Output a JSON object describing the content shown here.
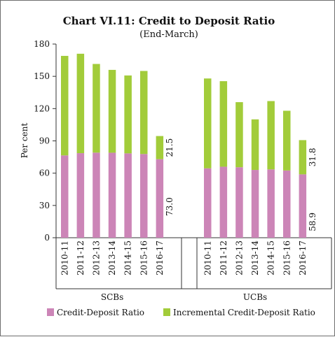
{
  "chart_data": {
    "type": "bar",
    "stacked": true,
    "title": "Chart VI.11: Credit to Deposit Ratio",
    "subtitle": "(End-March)",
    "ylabel": "Per cent",
    "ylim": [
      0,
      180
    ],
    "yticks": [
      0,
      30,
      60,
      90,
      120,
      150,
      180
    ],
    "groups": [
      {
        "name": "SCBs",
        "categories": [
          "2010-11",
          "2011-12",
          "2012-13",
          "2013-14",
          "2014-15",
          "2015-16",
          "2016-17"
        ],
        "base": [
          76.5,
          78.6,
          79.1,
          79.0,
          78.4,
          77.8,
          73.0
        ],
        "incremental": [
          92.5,
          92.4,
          82.4,
          77.0,
          72.4,
          77.2,
          21.5
        ]
      },
      {
        "name": "UCBs",
        "categories": [
          "2010-11",
          "2011-12",
          "2012-13",
          "2013-14",
          "2014-15",
          "2015-16",
          "2016-17"
        ],
        "base": [
          64.5,
          66.0,
          65.5,
          63.0,
          63.5,
          62.5,
          58.9
        ],
        "incremental": [
          83.5,
          79.5,
          60.5,
          47.0,
          63.5,
          55.5,
          31.8
        ]
      }
    ],
    "annotations": [
      {
        "group": 0,
        "category": 6,
        "series": "incremental",
        "text": "21.5"
      },
      {
        "group": 0,
        "category": 6,
        "series": "base",
        "text": "73.0"
      },
      {
        "group": 1,
        "category": 6,
        "series": "incremental",
        "text": "31.8"
      },
      {
        "group": 1,
        "category": 6,
        "series": "base",
        "text": "58.9"
      }
    ],
    "series": [
      {
        "name": "Credit-Deposit Ratio",
        "color": "#cc85b7"
      },
      {
        "name": "Incremental Credit-Deposit Ratio",
        "color": "#a2cc3a"
      }
    ],
    "legend": "bottom",
    "grid": false
  }
}
